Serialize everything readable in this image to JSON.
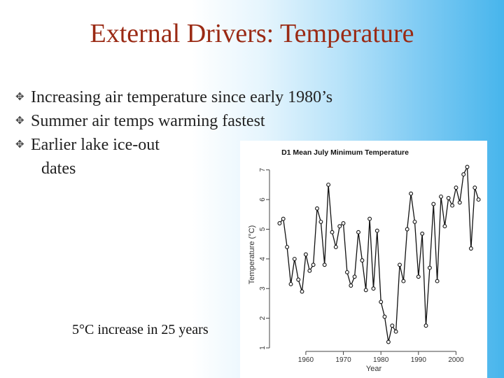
{
  "slide": {
    "title": "External Drivers: Temperature",
    "bullets": [
      "Increasing air temperature since early 1980’s",
      "Summer air temps warming fastest",
      "Earlier lake ice-out"
    ],
    "bullet_continuation": "dates",
    "note": "5°C increase in 25 years",
    "bullet_icon": "swirl-bullet-icon",
    "title_color": "#9a2a14"
  },
  "chart_data": {
    "type": "line",
    "title": "D1 Mean July Minimum Temperature",
    "xlabel": "Year",
    "ylabel": "Temperature (°C)",
    "xlim": [
      1952,
      2007
    ],
    "ylim": [
      1,
      7.3
    ],
    "xticks": [
      1960,
      1970,
      1980,
      1990,
      2000
    ],
    "yticks": [
      1,
      2,
      3,
      4,
      5,
      6,
      7
    ],
    "grid": false,
    "x": [
      1953,
      1954,
      1955,
      1956,
      1957,
      1958,
      1959,
      1960,
      1961,
      1962,
      1963,
      1964,
      1965,
      1966,
      1967,
      1968,
      1969,
      1970,
      1971,
      1972,
      1973,
      1974,
      1975,
      1976,
      1977,
      1978,
      1979,
      1980,
      1981,
      1982,
      1983,
      1984,
      1985,
      1986,
      1987,
      1988,
      1989,
      1990,
      1991,
      1992,
      1993,
      1994,
      1995,
      1996,
      1997,
      1998,
      1999,
      2000,
      2001,
      2002,
      2003,
      2004,
      2005,
      2006
    ],
    "y": [
      5.2,
      5.35,
      4.4,
      3.15,
      4.0,
      3.3,
      2.9,
      4.15,
      3.6,
      3.8,
      5.7,
      5.25,
      3.8,
      6.5,
      4.9,
      4.4,
      5.1,
      5.2,
      3.55,
      3.1,
      3.4,
      4.9,
      3.95,
      2.95,
      5.35,
      3.0,
      4.95,
      2.55,
      2.05,
      1.2,
      1.75,
      1.55,
      3.8,
      3.25,
      5.0,
      6.2,
      5.25,
      3.4,
      4.85,
      1.75,
      3.7,
      5.85,
      3.25,
      6.1,
      5.1,
      6.05,
      5.8,
      6.4,
      5.9,
      6.85,
      7.1,
      4.35,
      6.4,
      6.0
    ],
    "series_color": "#111111"
  }
}
